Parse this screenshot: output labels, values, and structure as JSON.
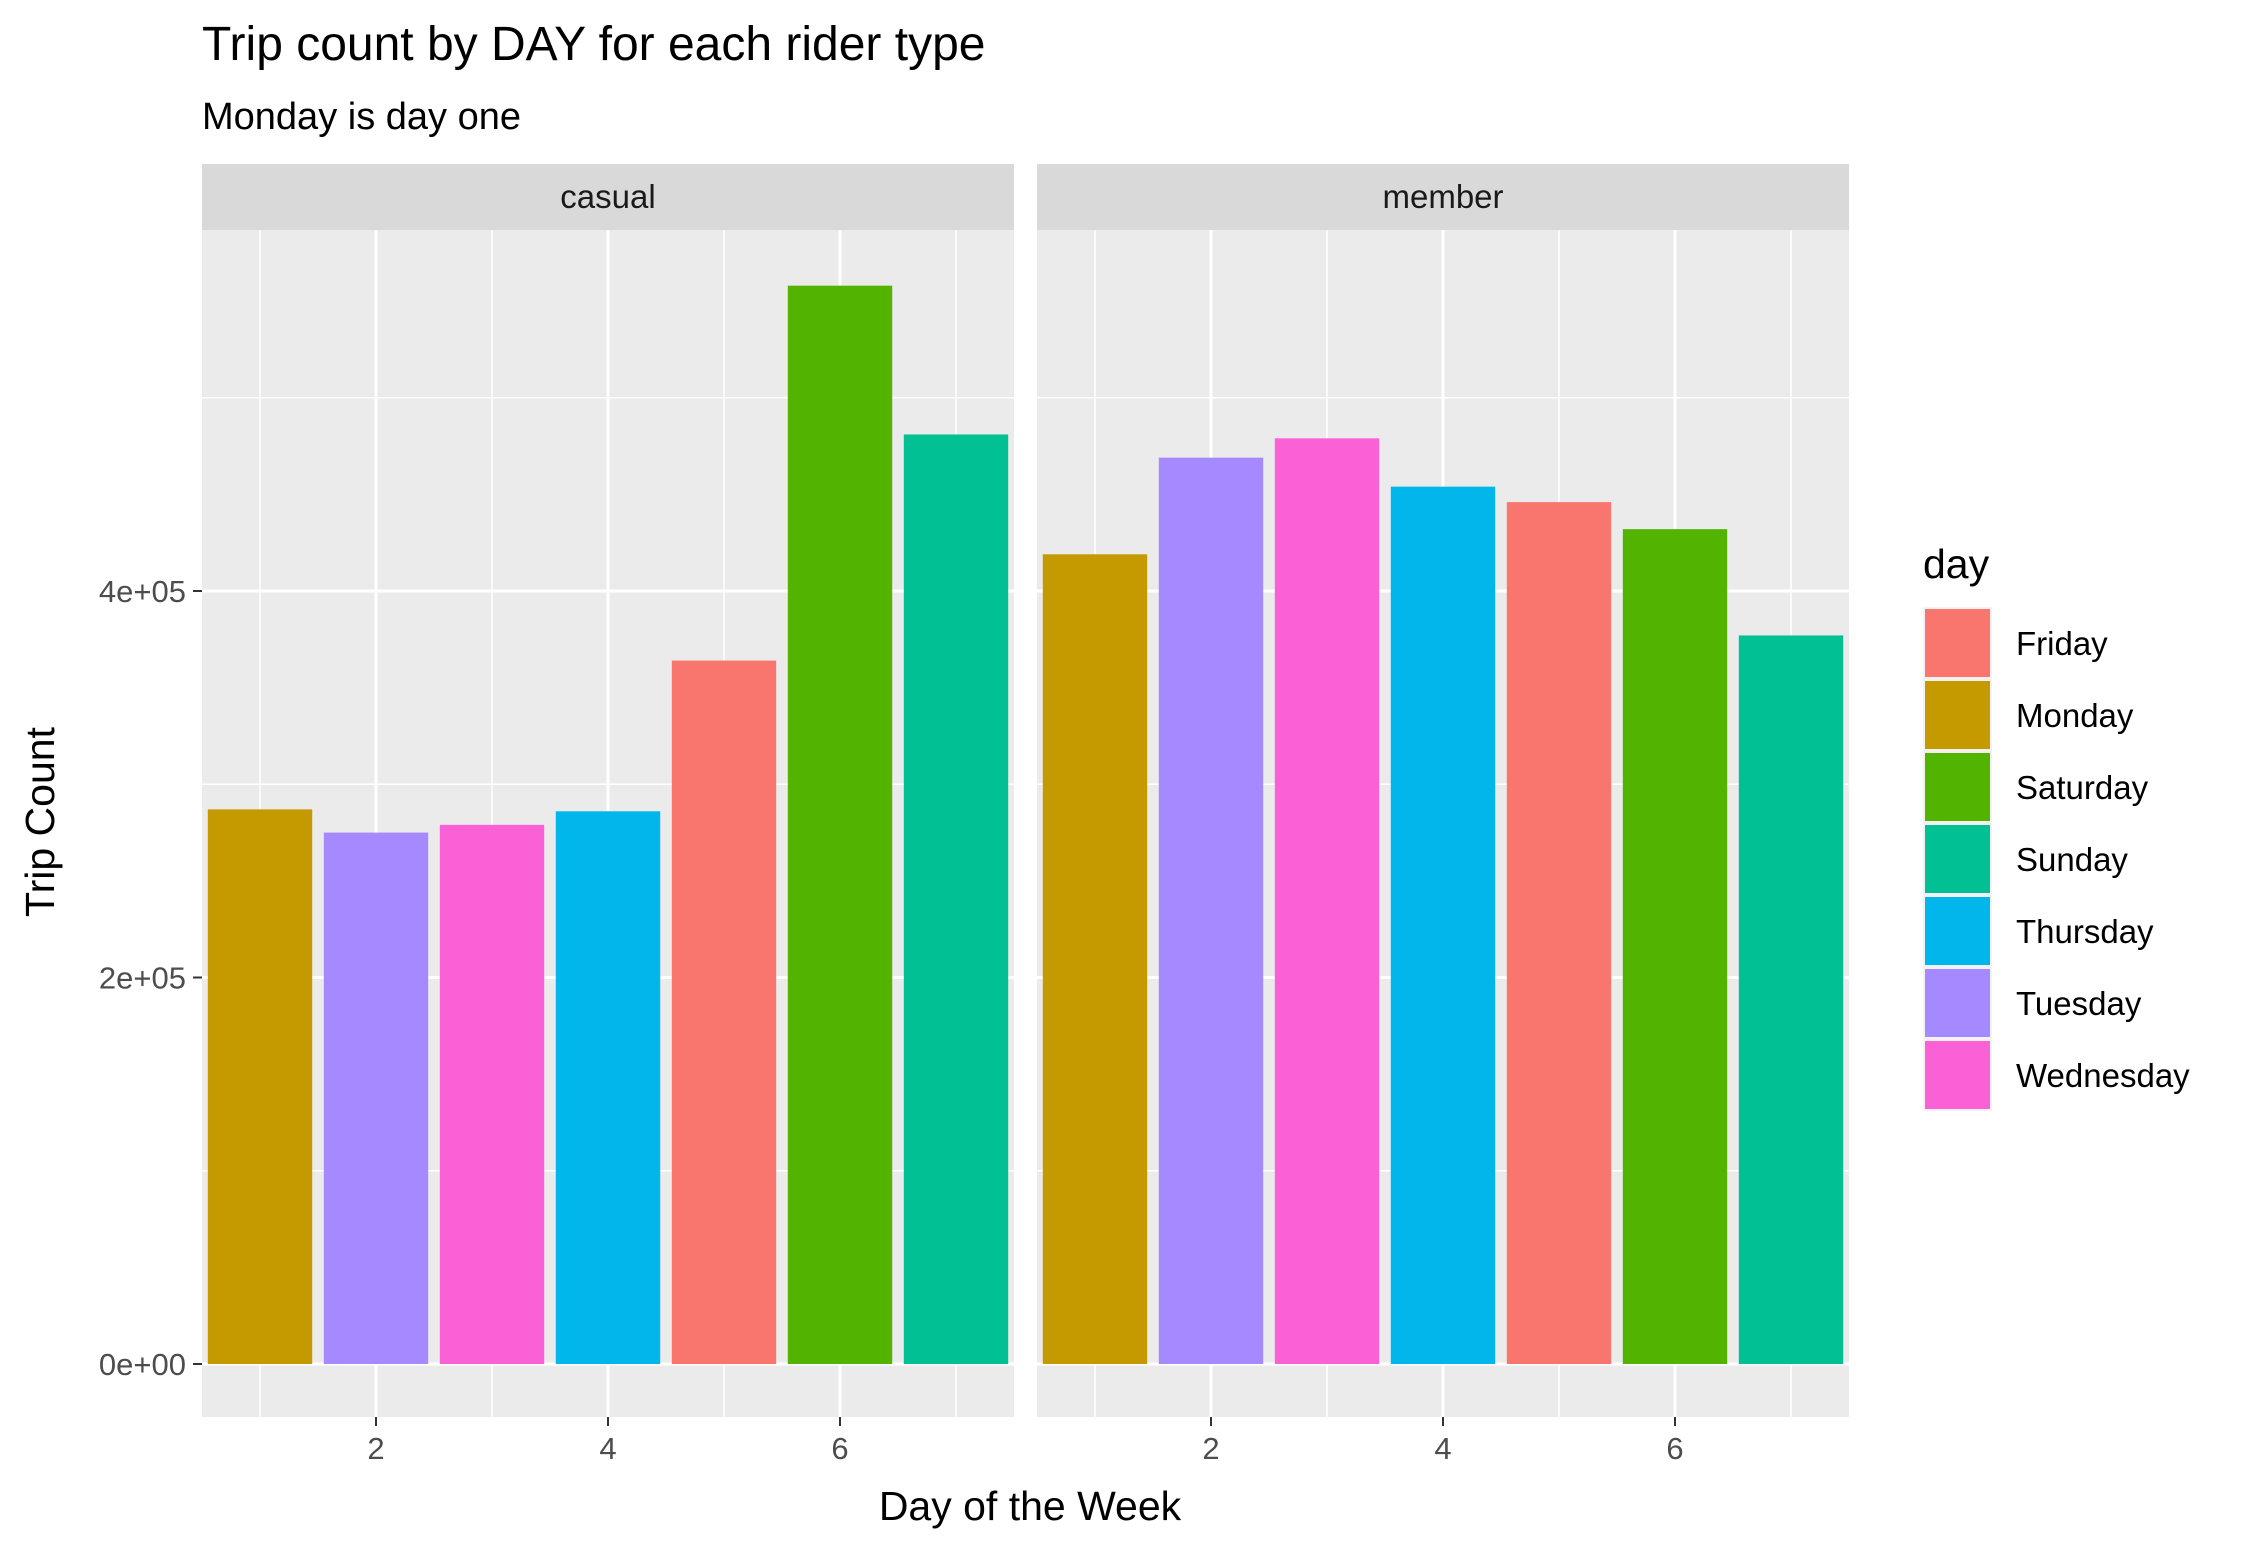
{
  "chart_data": {
    "type": "bar",
    "title": "Trip count by DAY for each rider type",
    "subtitle": "Monday is day one",
    "xlabel": "Day of the Week",
    "ylabel": "Trip Count",
    "xlim": [
      0.5,
      7.5
    ],
    "ylim": [
      0,
      560000
    ],
    "x_ticks": [
      2,
      4,
      6
    ],
    "x_tick_labels": [
      "2",
      "4",
      "6"
    ],
    "y_ticks": [
      0,
      200000,
      400000
    ],
    "y_tick_labels": [
      "0e+00",
      "2e+05",
      "4e+05"
    ],
    "grid": true,
    "legend": {
      "title": "day",
      "position": "right",
      "entries": [
        {
          "label": "Friday",
          "color": "#F8766D"
        },
        {
          "label": "Monday",
          "color": "#C49A00"
        },
        {
          "label": "Saturday",
          "color": "#53B400"
        },
        {
          "label": "Sunday",
          "color": "#00C094"
        },
        {
          "label": "Thursday",
          "color": "#00B6EB"
        },
        {
          "label": "Tuesday",
          "color": "#A58AFF"
        },
        {
          "label": "Wednesday",
          "color": "#FB61D7"
        }
      ]
    },
    "facets": [
      {
        "name": "casual",
        "bars": [
          {
            "x": 1,
            "day": "Monday",
            "value": 287000
          },
          {
            "x": 2,
            "day": "Tuesday",
            "value": 275000
          },
          {
            "x": 3,
            "day": "Wednesday",
            "value": 279000
          },
          {
            "x": 4,
            "day": "Thursday",
            "value": 286000
          },
          {
            "x": 5,
            "day": "Friday",
            "value": 364000
          },
          {
            "x": 6,
            "day": "Saturday",
            "value": 558000
          },
          {
            "x": 7,
            "day": "Sunday",
            "value": 481000
          }
        ]
      },
      {
        "name": "member",
        "bars": [
          {
            "x": 1,
            "day": "Monday",
            "value": 419000
          },
          {
            "x": 2,
            "day": "Tuesday",
            "value": 469000
          },
          {
            "x": 3,
            "day": "Wednesday",
            "value": 479000
          },
          {
            "x": 4,
            "day": "Thursday",
            "value": 454000
          },
          {
            "x": 5,
            "day": "Friday",
            "value": 446000
          },
          {
            "x": 6,
            "day": "Saturday",
            "value": 432000
          },
          {
            "x": 7,
            "day": "Sunday",
            "value": 377000
          }
        ]
      }
    ]
  }
}
